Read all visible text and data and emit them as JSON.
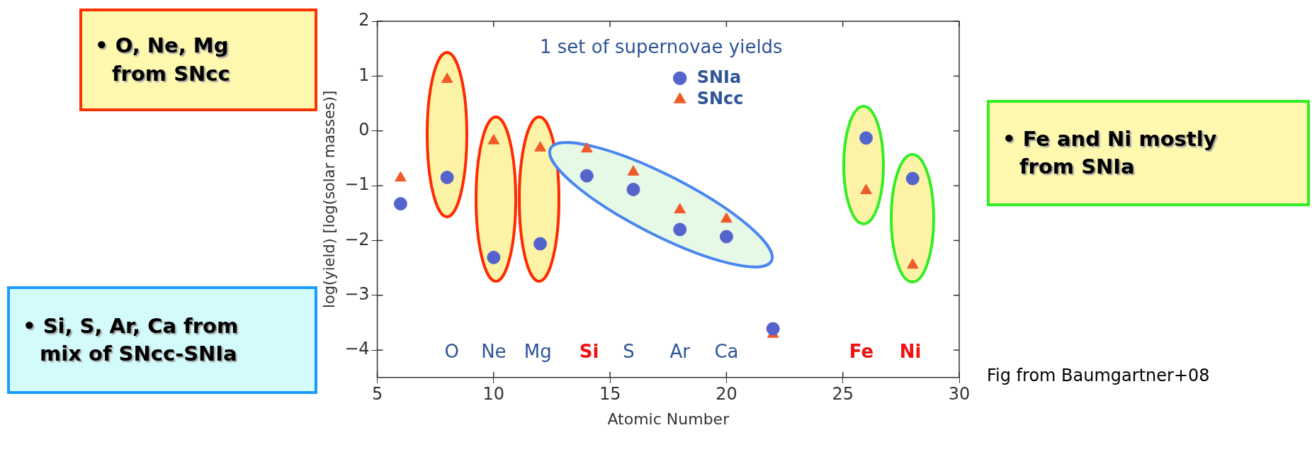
{
  "chart_data": {
    "type": "scatter",
    "title": "1 set of supernovae yields",
    "xlabel": "Atomic Number",
    "ylabel": "log(yield) [log(solar masses)]",
    "xlim": [
      5,
      30
    ],
    "xticks": [
      5,
      10,
      15,
      20,
      25,
      30
    ],
    "ylim": [
      -4.5,
      2
    ],
    "yticks": [
      -4,
      -3,
      -2,
      -1,
      0,
      1,
      2
    ],
    "legend": "top",
    "x": [
      6,
      8,
      10,
      12,
      14,
      16,
      18,
      20,
      22,
      26,
      28
    ],
    "series": [
      {
        "name": "SNIa",
        "color": "#5563cc",
        "marker": "circle",
        "values": [
          -1.33,
          -0.85,
          -2.31,
          -2.06,
          -0.82,
          -1.07,
          -1.8,
          -1.93,
          -3.61,
          -0.13,
          -0.87
        ]
      },
      {
        "name": "SNcc",
        "color": "#f05a28",
        "marker": "triangle",
        "values": [
          -0.86,
          0.94,
          -0.18,
          -0.31,
          -0.33,
          -0.75,
          -1.44,
          -1.61,
          -3.71,
          -1.09,
          -2.45
        ]
      }
    ],
    "annotations": [
      "• O, Ne, Mg from SNcc",
      "• Si, S, Ar, Ca from mix of SNcc-SNIa",
      "• Fe and Ni mostly from SNIa",
      "Fig from Baumgartner+08",
      "O",
      "Ne",
      "Mg",
      "Si",
      "S",
      "Ar",
      "Ca",
      "Fe",
      "Ni"
    ]
  }
}
